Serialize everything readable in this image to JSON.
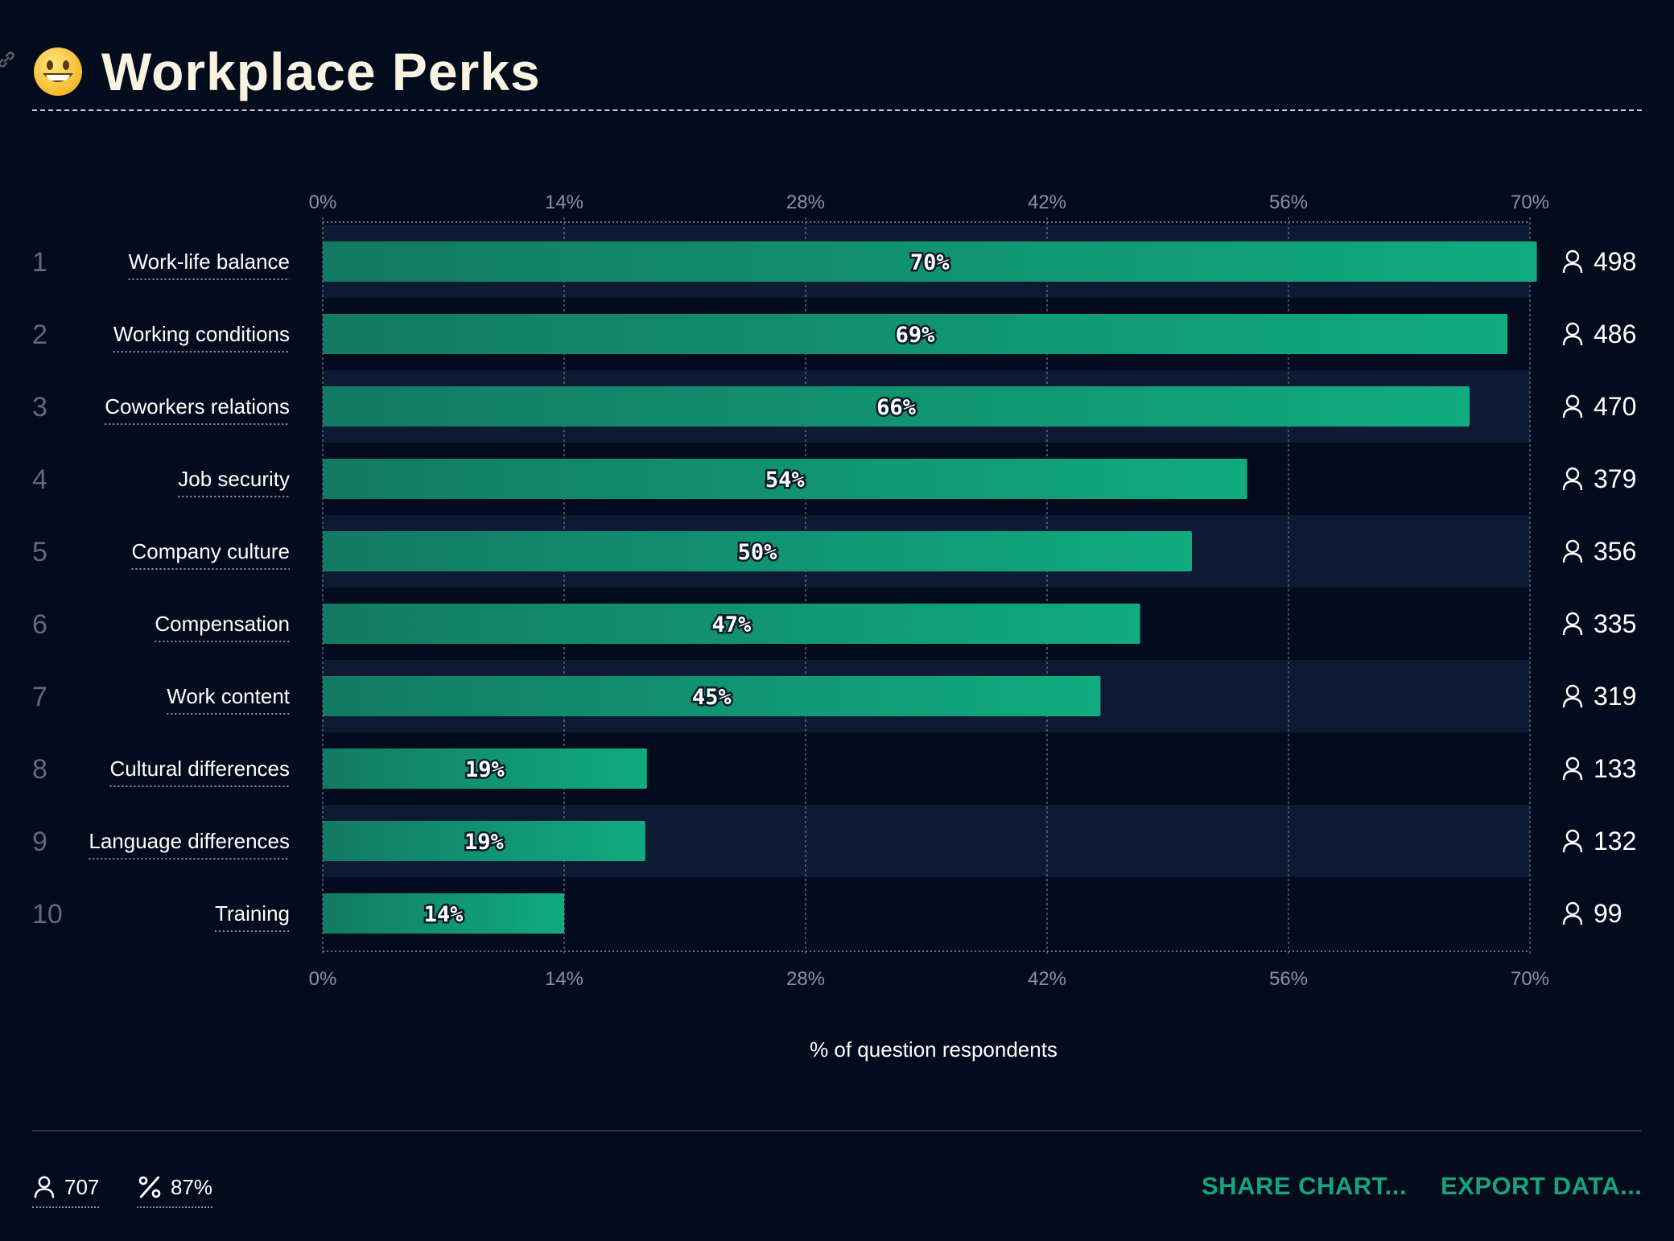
{
  "header": {
    "title": "Workplace Perks",
    "emoji": "grinning-face-emoji"
  },
  "chart_data": {
    "type": "bar",
    "orientation": "horizontal",
    "title": "Workplace Perks",
    "xlabel": "% of question respondents",
    "xlim": [
      0,
      70
    ],
    "ticks": [
      "0%",
      "14%",
      "28%",
      "42%",
      "56%",
      "70%"
    ],
    "tick_values": [
      0,
      14,
      28,
      42,
      56,
      70
    ],
    "categories": [
      "Work-life balance",
      "Working conditions",
      "Coworkers relations",
      "Job security",
      "Company culture",
      "Compensation",
      "Work content",
      "Cultural differences",
      "Language differences",
      "Training"
    ],
    "ranks": [
      "1",
      "2",
      "3",
      "4",
      "5",
      "6",
      "7",
      "8",
      "9",
      "10"
    ],
    "values": [
      70.4,
      68.7,
      66.5,
      53.6,
      50.4,
      47.4,
      45.1,
      18.8,
      18.7,
      14.0
    ],
    "value_labels": [
      "70%",
      "69%",
      "66%",
      "54%",
      "50%",
      "47%",
      "45%",
      "19%",
      "19%",
      "14%"
    ],
    "counts": [
      "498",
      "486",
      "470",
      "379",
      "356",
      "335",
      "319",
      "133",
      "132",
      "99"
    ],
    "grid": true,
    "colors": {
      "bar_start": "#127a62",
      "bar_end": "#10ab7f",
      "row_alt": "#0d1a33",
      "background": "#030c1d"
    }
  },
  "footer": {
    "respondents": "707",
    "percentage": "87%",
    "share_label": "SHARE CHART...",
    "export_label": "EXPORT DATA..."
  }
}
